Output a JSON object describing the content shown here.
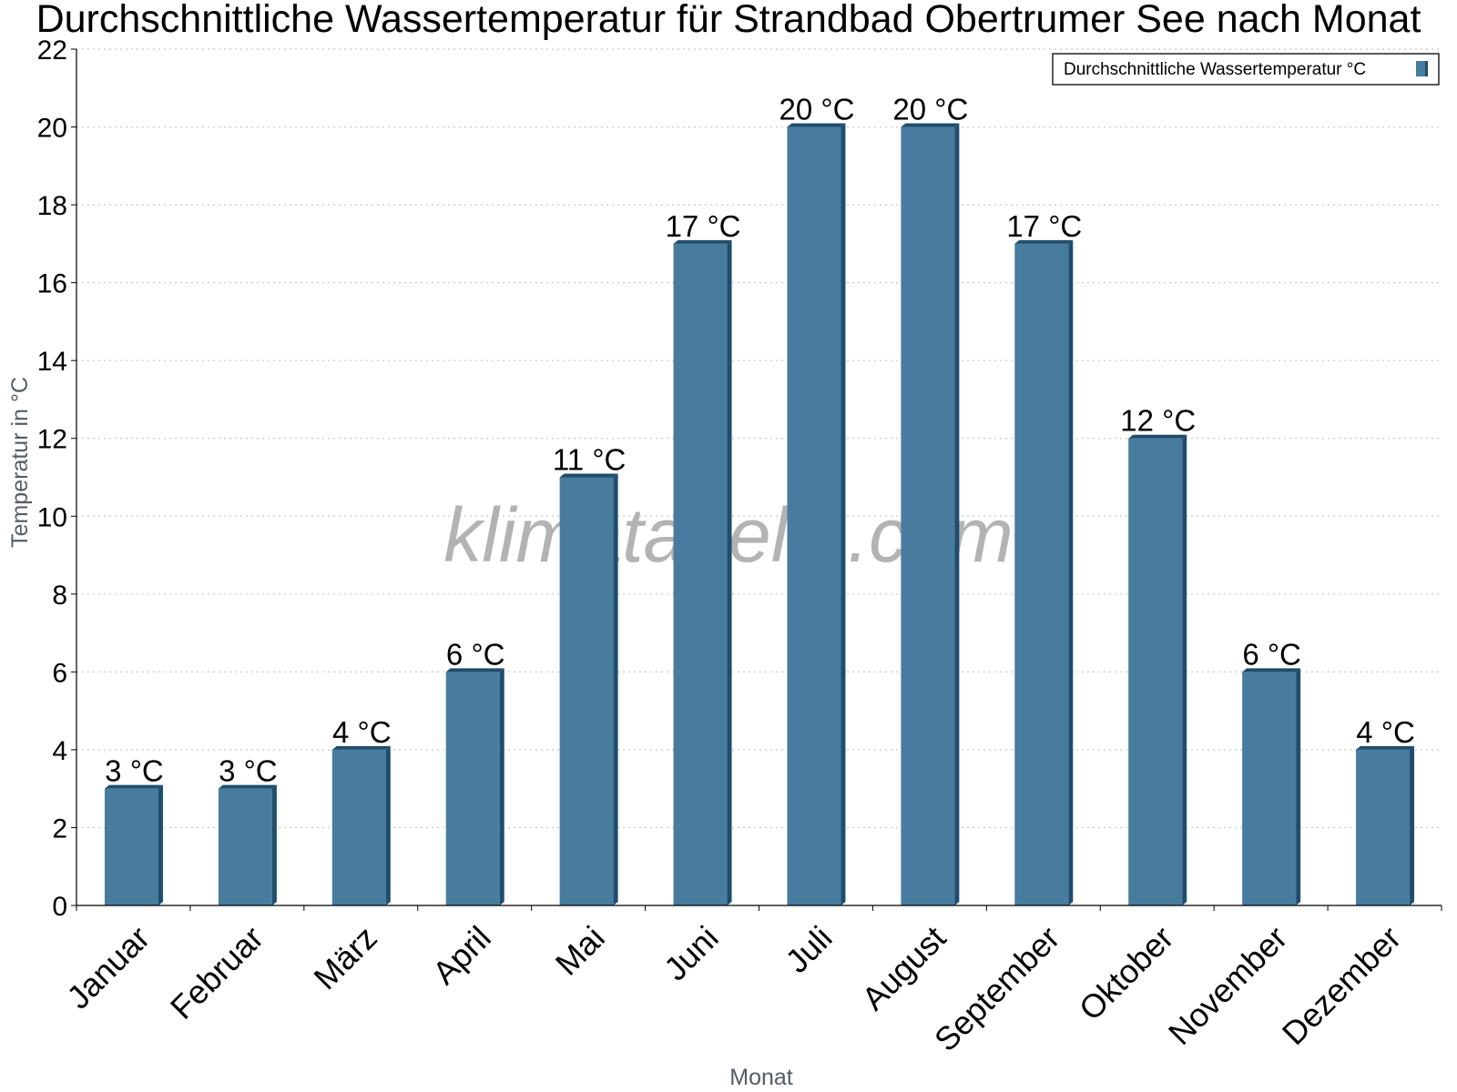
{
  "chart_data": {
    "type": "bar",
    "title": "Durchschnittliche Wassertemperatur für Strandbad Obertrumer See nach Monat",
    "xlabel": "Monat",
    "ylabel": "Temperatur in °C",
    "categories": [
      "Januar",
      "Februar",
      "März",
      "April",
      "Mai",
      "Juni",
      "Juli",
      "August",
      "September",
      "Oktober",
      "November",
      "Dezember"
    ],
    "series": [
      {
        "name": "Durchschnittliche Wassertemperatur °C",
        "values": [
          3,
          3,
          4,
          6,
          11,
          17,
          20,
          20,
          17,
          12,
          6,
          4
        ],
        "labels": [
          "3 °C",
          "3 °C",
          "4 °C",
          "6 °C",
          "11 °C",
          "17 °C",
          "20 °C",
          "20 °C",
          "17 °C",
          "12 °C",
          "6 °C",
          "4 °C"
        ]
      }
    ],
    "ylim": [
      0,
      22
    ],
    "yticks": [
      0,
      2,
      4,
      6,
      8,
      10,
      12,
      14,
      16,
      18,
      20,
      22
    ],
    "grid": "horizontal dotted",
    "legend_position": "top-right",
    "colors": {
      "bar": "#477c9e",
      "bar_side": "#1f4d6d",
      "grid": "#c8c8c8"
    },
    "watermark": "klimatabelle.com"
  }
}
